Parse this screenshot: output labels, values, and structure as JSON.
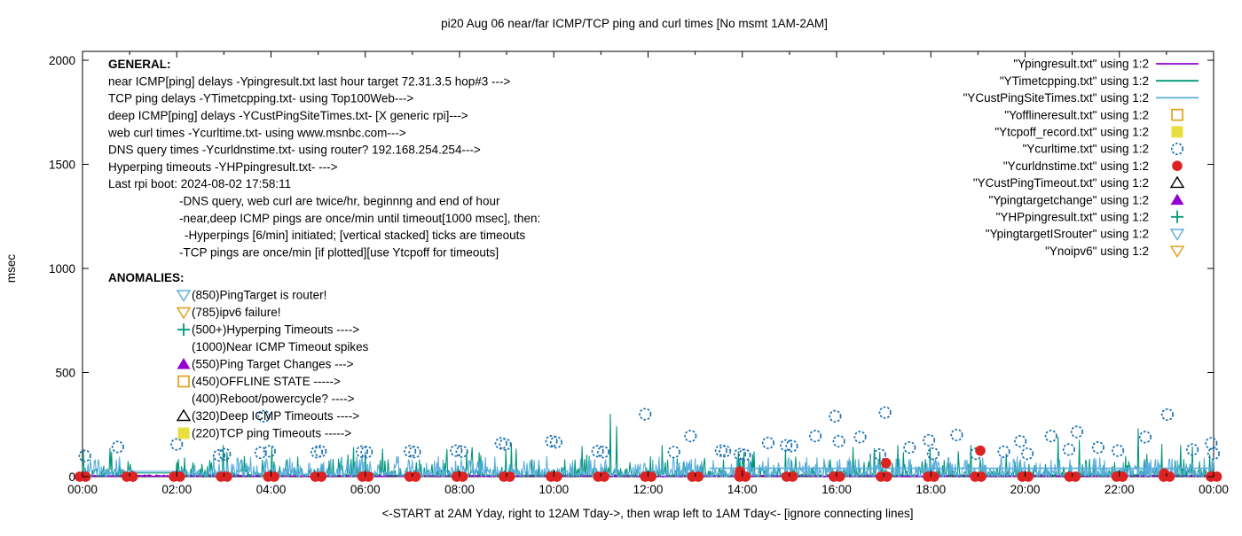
{
  "title": "pi20 Aug 06  near/far ICMP/TCP ping and curl times [No msmt 1AM-2AM]",
  "x_note": "<-START at 2AM Yday, right to 12AM Tday->, then wrap left to 1AM Tday<- [ignore connecting lines]",
  "annotations": {
    "general": {
      "heading": "GENERAL:",
      "lines": [
        {
          "indent": 0,
          "text": "near ICMP[ping] delays -Ypingresult.txt last hour target 72.31.3.5 hop#3 --->"
        },
        {
          "indent": 0,
          "text": "TCP ping delays -YTimetcpping.txt- using Top100Web--->"
        },
        {
          "indent": 0,
          "text": "deep ICMP[ping] delays -YCustPingSiteTimes.txt- [X generic rpi]--->"
        },
        {
          "indent": 0,
          "text": "web curl times -Ycurltime.txt- using www.msnbc.com--->"
        },
        {
          "indent": 0,
          "text": "DNS query times -Ycurldnstime.txt- using router? 192.168.254.254--->"
        },
        {
          "indent": 0,
          "text": "Hyperping timeouts -YHPpingresult.txt- --->"
        },
        {
          "indent": 0,
          "text": "Last rpi boot: 2024-08-02 17:58:11"
        },
        {
          "indent": 1,
          "text": "-DNS query, web curl are twice/hr, beginnng and end of hour"
        },
        {
          "indent": 1,
          "text": "-near,deep ICMP pings are once/min until timeout[1000 msec], then:"
        },
        {
          "indent": 2,
          "text": "-Hyperpings [6/min] initiated; [vertical stacked] ticks are timeouts"
        },
        {
          "indent": 1,
          "text": "-TCP pings are once/min [if plotted][use Ytcpoff for timeouts]"
        }
      ]
    },
    "anomalies": {
      "heading": "ANOMALIES:",
      "items": [
        {
          "marker": "triangle-down-open",
          "color": "#5aaede",
          "text": "(850)PingTarget is router!"
        },
        {
          "marker": "triangle-down-open",
          "color": "#e09c10",
          "text": "(785)ipv6 failure!"
        },
        {
          "marker": "plus",
          "color": "#009678",
          "text": "(500+)Hyperping Timeouts ---->"
        },
        {
          "marker": null,
          "color": null,
          "text": "(1000)Near ICMP Timeout spikes"
        },
        {
          "marker": "triangle-up-filled",
          "color": "#9400d3",
          "text": "(550)Ping Target Changes --->"
        },
        {
          "marker": "square-open",
          "color": "#e09c10",
          "text": "(450)OFFLINE STATE ----->"
        },
        {
          "marker": null,
          "color": null,
          "text": "(400)Reboot/powercycle? ---->"
        },
        {
          "marker": "triangle-up-open",
          "color": "#000000",
          "text": "(320)Deep ICMP Timeouts ---->"
        },
        {
          "marker": "square-filled",
          "color": "#e8df3c",
          "text": "(220)TCP ping Timeouts ----->"
        }
      ]
    }
  },
  "chart_data": {
    "type": "line",
    "title": "pi20 Aug 06  near/far ICMP/TCP ping and curl times [No msmt 1AM-2AM]",
    "xlabel": "<-START at 2AM Yday, right to 12AM Tday->, then wrap left to 1AM Tday<- [ignore connecting lines]",
    "x_axis": {
      "tick_labels": [
        "00:00",
        "02:00",
        "04:00",
        "06:00",
        "08:00",
        "10:00",
        "12:00",
        "14:00",
        "16:00",
        "18:00",
        "20:00",
        "22:00",
        "00:00"
      ],
      "hours_range": [
        0,
        24
      ],
      "minor_tick_every_hours": 1
    },
    "y_axis": {
      "label": "msec",
      "ticks": [
        0,
        500,
        1000,
        1500,
        2000
      ],
      "ylim": [
        0,
        2055
      ]
    },
    "no_measurement_gap_hours": [
      1.08,
      2.0
    ],
    "legend": [
      {
        "label": "\"Ypingresult.txt\" using 1:2",
        "marker": "line",
        "color": "#9400d3"
      },
      {
        "label": "\"YTimetcpping.txt\" using 1:2",
        "marker": "line",
        "color": "#009678"
      },
      {
        "label": "\"YCustPingSiteTimes.txt\" using 1:2",
        "marker": "line",
        "color": "#5aaede"
      },
      {
        "label": "\"Yofflineresult.txt\" using 1:2",
        "marker": "square-open",
        "color": "#e09c10"
      },
      {
        "label": "\"Ytcpoff_record.txt\" using 1:2",
        "marker": "square-filled",
        "color": "#e8df3c"
      },
      {
        "label": "\"Ycurltime.txt\" using 1:2",
        "marker": "circle-open",
        "color": "#1a6faf"
      },
      {
        "label": "\"Ycurldnstime.txt\" using 1:2",
        "marker": "circle-filled",
        "color": "#dd2222"
      },
      {
        "label": "\"YCustPingTimeout.txt\" using 1:2",
        "marker": "triangle-up-open",
        "color": "#000000"
      },
      {
        "label": "\"Ypingtargetchange\" using 1:2",
        "marker": "triangle-up-filled",
        "color": "#9400d3"
      },
      {
        "label": "\"YHPpingresult.txt\" using 1:2",
        "marker": "plus",
        "color": "#009678"
      },
      {
        "label": "\"YpingtargetISrouter\" using 1:2",
        "marker": "triangle-down-open",
        "color": "#5aaede"
      },
      {
        "label": "\"Ynoipv6\" using 1:2",
        "marker": "triangle-down-open",
        "color": "#e09c10"
      }
    ],
    "series": [
      {
        "name": "Ypingresult.txt",
        "style": "line",
        "color": "#9400d3",
        "description": "near ICMP ping delays, flat band 0-8 msec across full day",
        "noise": {
          "seed": 11,
          "kind": "flat-band",
          "min": 0,
          "max": 8,
          "step_min": 2
        }
      },
      {
        "name": "YTimetcpping.txt",
        "style": "line",
        "color": "#009678",
        "description": "TCP ping delays, noise 0-120 msec with taller spikes; flat ~18 during 1-2AM gap",
        "noise": {
          "seed": 7,
          "kind": "tcp",
          "gap_value": 18
        },
        "spikes": [
          [
            2.98,
            150
          ],
          [
            5.75,
            140
          ],
          [
            9.1,
            160
          ],
          [
            10.6,
            145
          ],
          [
            11.2,
            300
          ],
          [
            11.33,
            240
          ],
          [
            12.3,
            150
          ],
          [
            14.25,
            120
          ],
          [
            16.35,
            140
          ],
          [
            17.3,
            150
          ],
          [
            18.85,
            150
          ],
          [
            20.7,
            190
          ],
          [
            21.15,
            175
          ],
          [
            22.4,
            230
          ],
          [
            22.9,
            155
          ],
          [
            23.3,
            150
          ]
        ]
      },
      {
        "name": "YCustPingSiteTimes.txt",
        "style": "line",
        "color": "#5aaede",
        "description": "deep ICMP ping delays, noise 0-95 msec; flat ~26 during 1-2AM gap; constant ~40 msec level line from ~13:20 to 24:00",
        "noise": {
          "seed": 23,
          "kind": "deep",
          "gap_value": 26
        },
        "flat_segment": {
          "from_hour": 13.3,
          "to_hour": 24,
          "value": 40
        }
      },
      {
        "name": "Yofflineresult.txt",
        "style": "points",
        "marker": "square-open",
        "color": "#e09c10",
        "points": []
      },
      {
        "name": "Ytcpoff_record.txt",
        "style": "points",
        "marker": "square-filled",
        "color": "#e8df3c",
        "points": []
      },
      {
        "name": "Ycurltime.txt",
        "style": "points",
        "marker": "circle-open",
        "color": "#1a6faf",
        "points_hour_msec": [
          [
            0.05,
            100
          ],
          [
            0.75,
            143
          ],
          [
            2.0,
            155
          ],
          [
            2.9,
            102
          ],
          [
            3.02,
            108
          ],
          [
            3.78,
            115
          ],
          [
            3.85,
            290
          ],
          [
            3.97,
            122
          ],
          [
            4.97,
            118
          ],
          [
            5.05,
            122
          ],
          [
            5.93,
            120
          ],
          [
            6.03,
            118
          ],
          [
            6.95,
            122
          ],
          [
            7.05,
            118
          ],
          [
            7.93,
            125
          ],
          [
            8.05,
            120
          ],
          [
            8.88,
            160
          ],
          [
            8.97,
            155
          ],
          [
            9.95,
            170
          ],
          [
            10.05,
            165
          ],
          [
            10.93,
            122
          ],
          [
            11.05,
            118
          ],
          [
            11.94,
            300
          ],
          [
            12.55,
            118
          ],
          [
            12.9,
            195
          ],
          [
            13.55,
            125
          ],
          [
            13.63,
            122
          ],
          [
            13.95,
            108
          ],
          [
            14.05,
            104
          ],
          [
            14.55,
            162
          ],
          [
            14.93,
            150
          ],
          [
            15.05,
            147
          ],
          [
            15.55,
            195
          ],
          [
            15.97,
            290
          ],
          [
            16.05,
            170
          ],
          [
            16.5,
            190
          ],
          [
            16.92,
            106
          ],
          [
            17.03,
            308
          ],
          [
            17.55,
            140
          ],
          [
            17.96,
            175
          ],
          [
            18.05,
            110
          ],
          [
            18.55,
            200
          ],
          [
            18.96,
            110
          ],
          [
            19.55,
            120
          ],
          [
            19.9,
            170
          ],
          [
            20.05,
            110
          ],
          [
            20.55,
            195
          ],
          [
            20.93,
            130
          ],
          [
            21.1,
            215
          ],
          [
            21.55,
            140
          ],
          [
            21.97,
            125
          ],
          [
            22.55,
            190
          ],
          [
            23.02,
            298
          ],
          [
            23.55,
            130
          ],
          [
            23.95,
            160
          ],
          [
            24.0,
            110
          ]
        ]
      },
      {
        "name": "Ycurldnstime.txt",
        "style": "points",
        "marker": "circle-filled",
        "color": "#dd2222",
        "description": "DNS query times: paired dots near 0 msec at every hour mark",
        "hourly_pairs_value": 0,
        "hours": [
          0,
          1,
          2,
          3,
          4,
          5,
          6,
          7,
          8,
          9,
          10,
          11,
          12,
          13,
          14,
          15,
          16,
          17,
          18,
          19,
          20,
          21,
          22,
          23,
          24
        ],
        "elevated_points_hour_msec": [
          [
            13.95,
            25
          ],
          [
            17.05,
            65
          ],
          [
            19.05,
            125
          ],
          [
            22.95,
            15
          ]
        ]
      },
      {
        "name": "YCustPingTimeout.txt",
        "style": "points",
        "marker": "triangle-up-open",
        "color": "#000000",
        "points": []
      },
      {
        "name": "Ypingtargetchange",
        "style": "points",
        "marker": "triangle-up-filled",
        "color": "#9400d3",
        "points": []
      },
      {
        "name": "YHPpingresult.txt",
        "style": "points",
        "marker": "plus",
        "color": "#009678",
        "points": []
      },
      {
        "name": "YpingtargetISrouter",
        "style": "points",
        "marker": "triangle-down-open",
        "color": "#5aaede",
        "points": []
      },
      {
        "name": "Ynoipv6",
        "style": "points",
        "marker": "triangle-down-open",
        "color": "#e09c10",
        "points": []
      }
    ]
  }
}
